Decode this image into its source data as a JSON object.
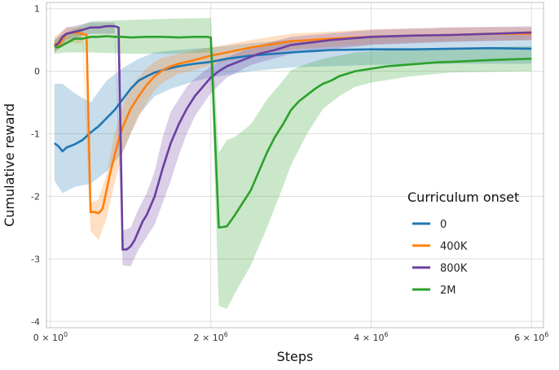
{
  "chart_data": {
    "type": "line",
    "xlabel": "Steps",
    "ylabel": "Cumulative reward",
    "xlim": [
      -50000,
      6150000
    ],
    "ylim": [
      -4.1,
      1.1
    ],
    "x_ticks": [
      {
        "value": 0,
        "label_main": "0 × 10",
        "label_exp": "0"
      },
      {
        "value": 2000000,
        "label_main": "2 × 10",
        "label_exp": "6"
      },
      {
        "value": 4000000,
        "label_main": "4 × 10",
        "label_exp": "6"
      },
      {
        "value": 6000000,
        "label_main": "6 × 10",
        "label_exp": "6"
      }
    ],
    "y_ticks": [
      {
        "value": 1,
        "label": "1"
      },
      {
        "value": 0,
        "label": "0"
      },
      {
        "value": -1,
        "label": "-1"
      },
      {
        "value": -2,
        "label": "-2"
      },
      {
        "value": -3,
        "label": "-3"
      },
      {
        "value": -4,
        "label": "-4"
      }
    ],
    "grid": true,
    "legend": {
      "title": "Curriculum onset",
      "position": "right"
    },
    "series": [
      {
        "name": "0",
        "color": "#1f77b4",
        "points": [
          [
            50000,
            -1.15
          ],
          [
            100000,
            -1.2
          ],
          [
            150000,
            -1.28
          ],
          [
            200000,
            -1.22
          ],
          [
            300000,
            -1.17
          ],
          [
            400000,
            -1.1
          ],
          [
            500000,
            -0.98
          ],
          [
            600000,
            -0.88
          ],
          [
            700000,
            -0.75
          ],
          [
            800000,
            -0.62
          ],
          [
            900000,
            -0.45
          ],
          [
            1000000,
            -0.28
          ],
          [
            1100000,
            -0.15
          ],
          [
            1200000,
            -0.08
          ],
          [
            1300000,
            -0.02
          ],
          [
            1400000,
            0.02
          ],
          [
            1500000,
            0.05
          ],
          [
            1600000,
            0.08
          ],
          [
            1700000,
            0.1
          ],
          [
            1800000,
            0.12
          ],
          [
            2000000,
            0.15
          ],
          [
            2200000,
            0.2
          ],
          [
            2500000,
            0.25
          ],
          [
            3000000,
            0.3
          ],
          [
            3500000,
            0.34
          ],
          [
            4000000,
            0.35
          ],
          [
            4500000,
            0.35
          ],
          [
            5000000,
            0.36
          ],
          [
            5500000,
            0.37
          ],
          [
            6000000,
            0.36
          ]
        ],
        "band": [
          [
            50000,
            -0.2,
            -1.75
          ],
          [
            150000,
            -0.2,
            -1.95
          ],
          [
            300000,
            -0.35,
            -1.85
          ],
          [
            500000,
            -0.5,
            -1.8
          ],
          [
            700000,
            -0.15,
            -1.6
          ],
          [
            900000,
            0.05,
            -1.3
          ],
          [
            1100000,
            0.2,
            -0.7
          ],
          [
            1300000,
            0.3,
            -0.4
          ],
          [
            1500000,
            0.33,
            -0.28
          ],
          [
            1800000,
            0.36,
            -0.16
          ],
          [
            2000000,
            0.38,
            -0.1
          ],
          [
            2500000,
            0.45,
            0.0
          ],
          [
            3000000,
            0.5,
            0.06
          ],
          [
            4000000,
            0.55,
            0.1
          ],
          [
            5000000,
            0.58,
            0.12
          ],
          [
            6000000,
            0.58,
            0.12
          ]
        ]
      },
      {
        "name": "400K",
        "color": "#ff7f0e",
        "points": [
          [
            50000,
            0.45
          ],
          [
            100000,
            0.4
          ],
          [
            150000,
            0.5
          ],
          [
            200000,
            0.6
          ],
          [
            300000,
            0.62
          ],
          [
            400000,
            0.6
          ],
          [
            450000,
            0.58
          ],
          [
            500000,
            -2.25
          ],
          [
            550000,
            -2.25
          ],
          [
            600000,
            -2.27
          ],
          [
            650000,
            -2.2
          ],
          [
            700000,
            -1.9
          ],
          [
            750000,
            -1.6
          ],
          [
            800000,
            -1.35
          ],
          [
            850000,
            -1.1
          ],
          [
            900000,
            -0.9
          ],
          [
            1000000,
            -0.6
          ],
          [
            1100000,
            -0.4
          ],
          [
            1200000,
            -0.22
          ],
          [
            1300000,
            -0.08
          ],
          [
            1400000,
            0.02
          ],
          [
            1500000,
            0.08
          ],
          [
            1600000,
            0.12
          ],
          [
            1800000,
            0.18
          ],
          [
            2000000,
            0.25
          ],
          [
            2200000,
            0.3
          ],
          [
            2500000,
            0.38
          ],
          [
            3000000,
            0.48
          ],
          [
            3500000,
            0.52
          ],
          [
            4000000,
            0.55
          ],
          [
            4500000,
            0.57
          ],
          [
            5000000,
            0.58
          ],
          [
            5500000,
            0.6
          ],
          [
            6000000,
            0.6
          ]
        ],
        "band": [
          [
            50000,
            0.55,
            0.3
          ],
          [
            200000,
            0.7,
            0.45
          ],
          [
            400000,
            0.7,
            0.45
          ],
          [
            500000,
            -2.1,
            -2.55
          ],
          [
            600000,
            -2.05,
            -2.7
          ],
          [
            700000,
            -1.65,
            -2.35
          ],
          [
            800000,
            -1.0,
            -1.8
          ],
          [
            900000,
            -0.55,
            -1.3
          ],
          [
            1000000,
            -0.25,
            -1.0
          ],
          [
            1100000,
            -0.1,
            -0.75
          ],
          [
            1200000,
            0.05,
            -0.5
          ],
          [
            1300000,
            0.15,
            -0.3
          ],
          [
            1400000,
            0.22,
            -0.18
          ],
          [
            1600000,
            0.28,
            -0.04
          ],
          [
            1800000,
            0.33,
            0.02
          ],
          [
            2000000,
            0.38,
            0.1
          ],
          [
            2500000,
            0.5,
            0.25
          ],
          [
            3000000,
            0.6,
            0.35
          ],
          [
            4000000,
            0.67,
            0.43
          ],
          [
            5000000,
            0.7,
            0.48
          ],
          [
            6000000,
            0.7,
            0.5
          ]
        ]
      },
      {
        "name": "800K",
        "color": "#6b3fa0",
        "points": [
          [
            50000,
            0.4
          ],
          [
            100000,
            0.45
          ],
          [
            150000,
            0.55
          ],
          [
            200000,
            0.6
          ],
          [
            300000,
            0.63
          ],
          [
            400000,
            0.66
          ],
          [
            500000,
            0.7
          ],
          [
            600000,
            0.7
          ],
          [
            700000,
            0.72
          ],
          [
            800000,
            0.72
          ],
          [
            850000,
            0.7
          ],
          [
            900000,
            -2.85
          ],
          [
            950000,
            -2.85
          ],
          [
            1000000,
            -2.8
          ],
          [
            1050000,
            -2.7
          ],
          [
            1100000,
            -2.55
          ],
          [
            1150000,
            -2.4
          ],
          [
            1200000,
            -2.3
          ],
          [
            1300000,
            -2.0
          ],
          [
            1400000,
            -1.55
          ],
          [
            1500000,
            -1.15
          ],
          [
            1600000,
            -0.85
          ],
          [
            1700000,
            -0.6
          ],
          [
            1800000,
            -0.4
          ],
          [
            1900000,
            -0.25
          ],
          [
            2000000,
            -0.1
          ],
          [
            2100000,
            0.0
          ],
          [
            2200000,
            0.08
          ],
          [
            2400000,
            0.18
          ],
          [
            2600000,
            0.28
          ],
          [
            2800000,
            0.34
          ],
          [
            3000000,
            0.42
          ],
          [
            3500000,
            0.5
          ],
          [
            4000000,
            0.55
          ],
          [
            4500000,
            0.57
          ],
          [
            5000000,
            0.58
          ],
          [
            5500000,
            0.6
          ],
          [
            6000000,
            0.62
          ]
        ],
        "band": [
          [
            50000,
            0.5,
            0.3
          ],
          [
            200000,
            0.7,
            0.5
          ],
          [
            500000,
            0.78,
            0.6
          ],
          [
            800000,
            0.78,
            0.6
          ],
          [
            900000,
            -2.55,
            -3.1
          ],
          [
            1000000,
            -2.5,
            -3.12
          ],
          [
            1100000,
            -2.2,
            -2.85
          ],
          [
            1200000,
            -1.95,
            -2.65
          ],
          [
            1300000,
            -1.6,
            -2.45
          ],
          [
            1400000,
            -1.05,
            -2.1
          ],
          [
            1500000,
            -0.65,
            -1.75
          ],
          [
            1600000,
            -0.45,
            -1.35
          ],
          [
            1700000,
            -0.25,
            -1.0
          ],
          [
            1800000,
            -0.12,
            -0.72
          ],
          [
            2000000,
            0.08,
            -0.35
          ],
          [
            2200000,
            0.22,
            -0.1
          ],
          [
            2500000,
            0.38,
            0.1
          ],
          [
            3000000,
            0.55,
            0.28
          ],
          [
            4000000,
            0.66,
            0.42
          ],
          [
            5000000,
            0.7,
            0.47
          ],
          [
            6000000,
            0.72,
            0.5
          ]
        ]
      },
      {
        "name": "2M",
        "color": "#2ca02c",
        "points": [
          [
            50000,
            0.4
          ],
          [
            100000,
            0.38
          ],
          [
            200000,
            0.45
          ],
          [
            300000,
            0.52
          ],
          [
            400000,
            0.52
          ],
          [
            500000,
            0.55
          ],
          [
            600000,
            0.55
          ],
          [
            700000,
            0.56
          ],
          [
            800000,
            0.55
          ],
          [
            900000,
            0.55
          ],
          [
            1000000,
            0.54
          ],
          [
            1200000,
            0.55
          ],
          [
            1400000,
            0.55
          ],
          [
            1600000,
            0.54
          ],
          [
            1800000,
            0.55
          ],
          [
            1950000,
            0.55
          ],
          [
            2000000,
            0.54
          ],
          [
            2100000,
            -2.5
          ],
          [
            2200000,
            -2.48
          ],
          [
            2300000,
            -2.3
          ],
          [
            2400000,
            -2.1
          ],
          [
            2500000,
            -1.9
          ],
          [
            2600000,
            -1.6
          ],
          [
            2700000,
            -1.3
          ],
          [
            2800000,
            -1.05
          ],
          [
            2900000,
            -0.85
          ],
          [
            3000000,
            -0.62
          ],
          [
            3100000,
            -0.48
          ],
          [
            3200000,
            -0.38
          ],
          [
            3300000,
            -0.28
          ],
          [
            3400000,
            -0.2
          ],
          [
            3500000,
            -0.15
          ],
          [
            3600000,
            -0.08
          ],
          [
            3800000,
            0.0
          ],
          [
            4000000,
            0.04
          ],
          [
            4200000,
            0.08
          ],
          [
            4400000,
            0.1
          ],
          [
            4600000,
            0.12
          ],
          [
            4800000,
            0.14
          ],
          [
            5000000,
            0.15
          ],
          [
            5500000,
            0.18
          ],
          [
            6000000,
            0.2
          ]
        ],
        "band": [
          [
            50000,
            0.5,
            0.28
          ],
          [
            200000,
            0.62,
            0.3
          ],
          [
            500000,
            0.8,
            0.3
          ],
          [
            1000000,
            0.82,
            0.28
          ],
          [
            1500000,
            0.84,
            0.28
          ],
          [
            2000000,
            0.85,
            0.3
          ],
          [
            2100000,
            -1.3,
            -3.75
          ],
          [
            2200000,
            -1.1,
            -3.8
          ],
          [
            2300000,
            -1.05,
            -3.55
          ],
          [
            2500000,
            -0.85,
            -3.1
          ],
          [
            2700000,
            -0.45,
            -2.5
          ],
          [
            2900000,
            -0.15,
            -1.85
          ],
          [
            3000000,
            0.02,
            -1.5
          ],
          [
            3200000,
            0.12,
            -1.0
          ],
          [
            3400000,
            0.2,
            -0.6
          ],
          [
            3600000,
            0.25,
            -0.4
          ],
          [
            3800000,
            0.3,
            -0.25
          ],
          [
            4000000,
            0.32,
            -0.18
          ],
          [
            4500000,
            0.35,
            -0.08
          ],
          [
            5000000,
            0.37,
            -0.02
          ],
          [
            6000000,
            0.4,
            0.0
          ]
        ]
      }
    ]
  }
}
